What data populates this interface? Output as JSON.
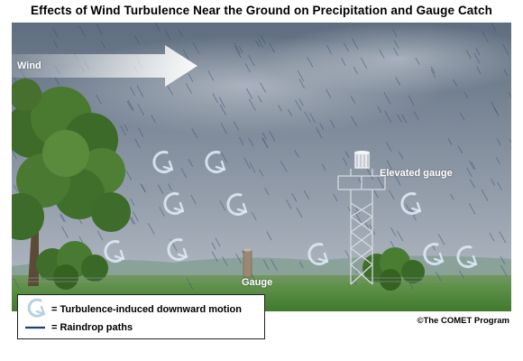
{
  "title": "Effects of Wind Turbulence Near the Ground on Precipitation and Gauge Catch",
  "scene": {
    "wind_label": "Wind",
    "elevated_gauge_label": "Elevated gauge",
    "gauge_label": "Gauge"
  },
  "legend": {
    "turbulence_label": "= Turbulence-induced downward motion",
    "raindrop_label": "= Raindrop paths"
  },
  "credit": "©The COMET Program",
  "colors": {
    "sky_top": "#5f6e80",
    "sky_bottom": "#b4bcc4",
    "grass": "#4f8a3c",
    "rain": "#3a5275",
    "turbulence_arrow": "#dce8f4",
    "legend_rain_line": "#1f3f72"
  },
  "icons": {
    "wind": "wind-arrow-icon",
    "turbulence": "curved-arrow-icon",
    "raindrop": "raindrop-line-icon"
  }
}
